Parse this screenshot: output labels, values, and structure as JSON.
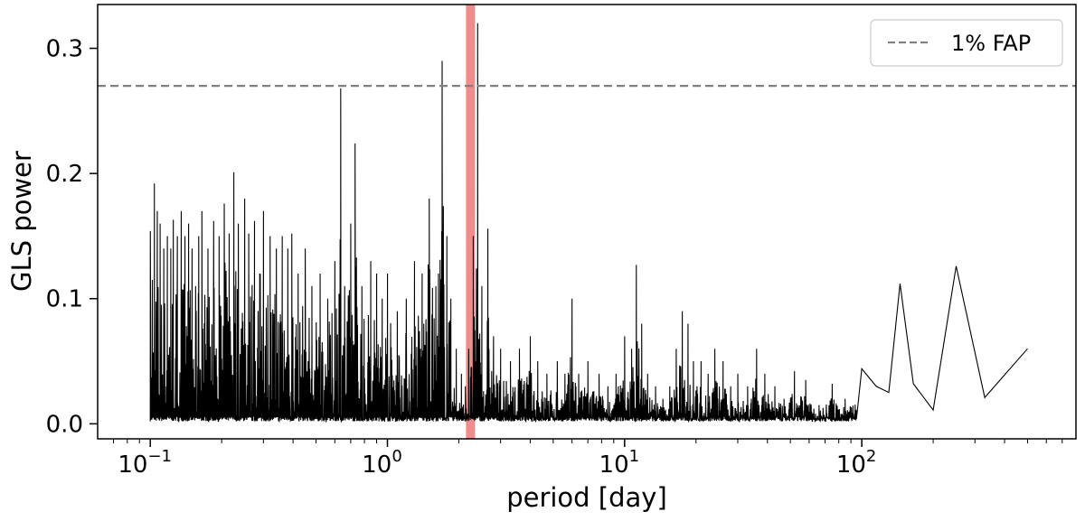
{
  "chart_data": {
    "type": "line",
    "title": "",
    "xlabel": "period [day]",
    "ylabel": "GLS power",
    "xscale": "log",
    "xlim": [
      0.06,
      800
    ],
    "ylim": [
      -0.012,
      0.335
    ],
    "x_ticks": [
      {
        "value": 0.1,
        "base": "10",
        "exp": "−1"
      },
      {
        "value": 1,
        "base": "10",
        "exp": "0"
      },
      {
        "value": 10,
        "base": "10",
        "exp": "1"
      },
      {
        "value": 100,
        "base": "10",
        "exp": "2"
      }
    ],
    "y_ticks": [
      {
        "value": 0.0,
        "label": "0.0"
      },
      {
        "value": 0.1,
        "label": "0.1"
      },
      {
        "value": 0.2,
        "label": "0.2"
      },
      {
        "value": 0.3,
        "label": "0.3"
      }
    ],
    "grid": false,
    "legend_position": "top-right",
    "fap_line": {
      "label": "1% FAP",
      "y": 0.27,
      "color": "#808080",
      "style": "dashed"
    },
    "highlight_band": {
      "x": 2.24,
      "color": "#f08080"
    },
    "series": [
      {
        "color": "#000000",
        "x_range": [
          0.1,
          500
        ],
        "floor": 0.002,
        "peaks": [
          [
            0.1,
            0.154
          ],
          [
            0.102,
            0.115
          ],
          [
            0.104,
            0.192
          ],
          [
            0.107,
            0.17
          ],
          [
            0.11,
            0.16
          ],
          [
            0.114,
            0.14
          ],
          [
            0.118,
            0.15
          ],
          [
            0.122,
            0.14
          ],
          [
            0.125,
            0.163
          ],
          [
            0.13,
            0.15
          ],
          [
            0.135,
            0.17
          ],
          [
            0.14,
            0.15
          ],
          [
            0.145,
            0.16
          ],
          [
            0.15,
            0.14
          ],
          [
            0.16,
            0.15
          ],
          [
            0.165,
            0.17
          ],
          [
            0.175,
            0.14
          ],
          [
            0.185,
            0.162
          ],
          [
            0.195,
            0.15
          ],
          [
            0.205,
            0.176
          ],
          [
            0.215,
            0.152
          ],
          [
            0.225,
            0.201
          ],
          [
            0.235,
            0.16
          ],
          [
            0.25,
            0.18
          ],
          [
            0.26,
            0.152
          ],
          [
            0.275,
            0.162
          ],
          [
            0.3,
            0.17
          ],
          [
            0.32,
            0.15
          ],
          [
            0.34,
            0.14
          ],
          [
            0.36,
            0.15
          ],
          [
            0.38,
            0.14
          ],
          [
            0.395,
            0.152
          ],
          [
            0.42,
            0.12
          ],
          [
            0.45,
            0.14
          ],
          [
            0.48,
            0.11
          ],
          [
            0.52,
            0.12
          ],
          [
            0.56,
            0.1
          ],
          [
            0.6,
            0.13
          ],
          [
            0.635,
            0.268
          ],
          [
            0.66,
            0.11
          ],
          [
            0.7,
            0.16
          ],
          [
            0.73,
            0.224
          ],
          [
            0.78,
            0.11
          ],
          [
            0.85,
            0.13
          ],
          [
            0.9,
            0.12
          ],
          [
            0.95,
            0.1
          ],
          [
            1.0,
            0.12
          ],
          [
            1.1,
            0.09
          ],
          [
            1.2,
            0.1
          ],
          [
            1.3,
            0.13
          ],
          [
            1.4,
            0.12
          ],
          [
            1.5,
            0.18
          ],
          [
            1.6,
            0.11
          ],
          [
            1.7,
            0.29
          ],
          [
            1.78,
            0.15
          ],
          [
            1.85,
            0.1
          ],
          [
            1.95,
            0.06
          ],
          [
            2.05,
            0.04
          ],
          [
            2.13,
            0.03
          ],
          [
            2.2,
            0.06
          ],
          [
            2.3,
            0.15
          ],
          [
            2.4,
            0.32
          ],
          [
            2.5,
            0.11
          ],
          [
            2.65,
            0.156
          ],
          [
            2.8,
            0.07
          ],
          [
            3.0,
            0.06
          ],
          [
            3.3,
            0.05
          ],
          [
            3.6,
            0.06
          ],
          [
            4.0,
            0.07
          ],
          [
            4.3,
            0.05
          ],
          [
            4.7,
            0.04
          ],
          [
            5.2,
            0.05
          ],
          [
            5.6,
            0.04
          ],
          [
            6.0,
            0.1
          ],
          [
            6.4,
            0.04
          ],
          [
            7.0,
            0.05
          ],
          [
            7.8,
            0.04
          ],
          [
            8.5,
            0.03
          ],
          [
            9.2,
            0.04
          ],
          [
            10.0,
            0.07
          ],
          [
            10.7,
            0.06
          ],
          [
            11.2,
            0.127
          ],
          [
            11.8,
            0.08
          ],
          [
            12.5,
            0.04
          ],
          [
            13.5,
            0.03
          ],
          [
            14.5,
            0.02
          ],
          [
            15.5,
            0.03
          ],
          [
            16.5,
            0.06
          ],
          [
            17.5,
            0.09
          ],
          [
            18.5,
            0.08
          ],
          [
            19.5,
            0.05
          ],
          [
            21.0,
            0.05
          ],
          [
            22.5,
            0.04
          ],
          [
            24.0,
            0.06
          ],
          [
            26.0,
            0.05
          ],
          [
            28.0,
            0.03
          ],
          [
            30.0,
            0.04
          ],
          [
            33.0,
            0.03
          ],
          [
            36.0,
            0.06
          ],
          [
            39.0,
            0.04
          ],
          [
            43.0,
            0.03
          ],
          [
            47.0,
            0.02
          ],
          [
            52.0,
            0.042
          ],
          [
            58.0,
            0.035
          ],
          [
            66.0,
            0.015
          ],
          [
            75.0,
            0.032
          ],
          [
            85.0,
            0.02
          ],
          [
            95.0,
            0.043
          ],
          [
            110.0,
            0.042
          ],
          [
            120.0,
            0.03
          ],
          [
            145.0,
            0.112
          ],
          [
            165.0,
            0.032
          ],
          [
            200.0,
            0.011
          ],
          [
            250.0,
            0.126
          ],
          [
            330.0,
            0.021
          ],
          [
            500.0,
            0.06
          ]
        ],
        "low_period_points": [
          [
            0.1,
            0.003
          ],
          [
            100.0,
            0.044
          ],
          [
            115.0,
            0.03
          ],
          [
            130.0,
            0.025
          ],
          [
            145.0,
            0.112
          ],
          [
            165.0,
            0.032
          ],
          [
            200.0,
            0.011
          ],
          [
            250.0,
            0.126
          ],
          [
            330.0,
            0.021
          ],
          [
            500.0,
            0.06
          ]
        ]
      }
    ]
  }
}
